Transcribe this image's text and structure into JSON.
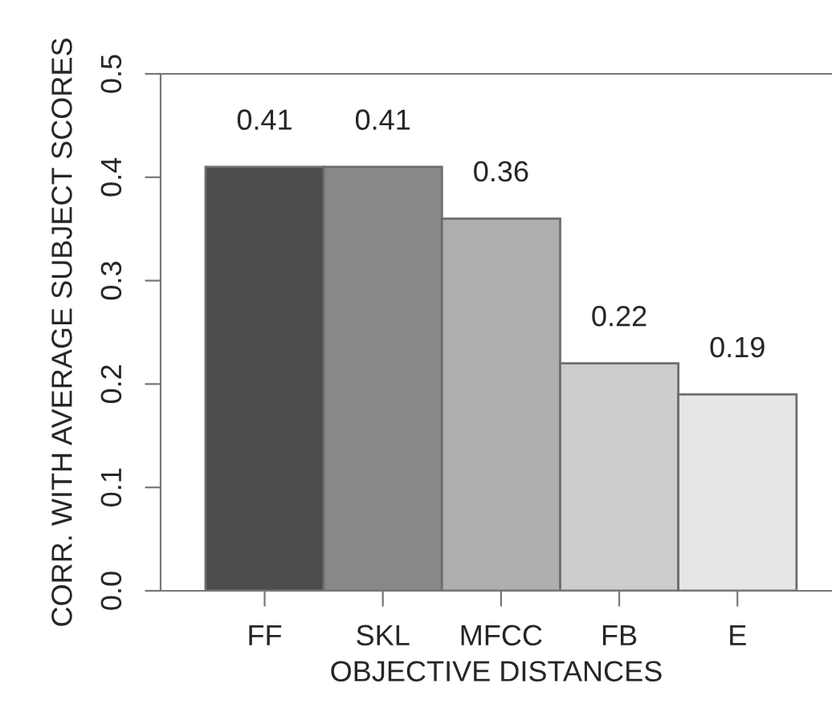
{
  "chart_data": {
    "type": "bar",
    "xlabel": "OBJECTIVE DISTANCES",
    "ylabel": "CORR. WITH AVERAGE SUBJECT SCORES",
    "categories": [
      "FF",
      "SKL",
      "MFCC",
      "FB",
      "E"
    ],
    "values": [
      0.41,
      0.41,
      0.36,
      0.22,
      0.19
    ],
    "colors": [
      "#4d4d4d",
      "#888888",
      "#aeaeae",
      "#cdcdcd",
      "#e6e6e6"
    ],
    "ylim": [
      0,
      0.5
    ],
    "yticks": [
      {
        "value": 0,
        "label": "0.0"
      },
      0.1,
      0.2,
      0.3,
      0.4,
      0.5
    ],
    "data_labels": true,
    "grid": false
  }
}
